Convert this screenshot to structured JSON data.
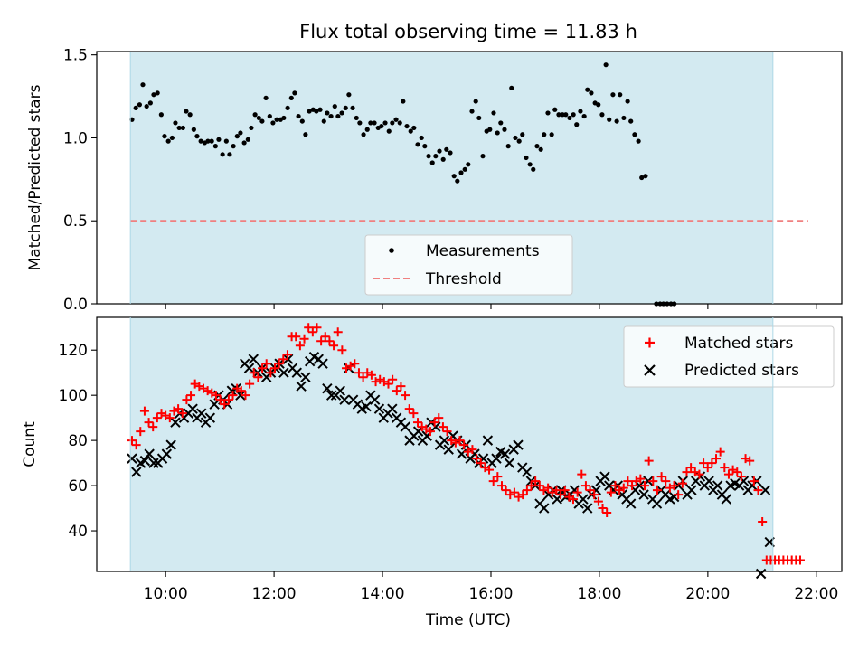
{
  "chart_data": [
    {
      "type": "scatter",
      "title": "Flux total observing time = 11.83 h",
      "xlabel": "",
      "ylabel": "Matched/Predicted stars",
      "xlim": [
        8.73,
        22.47
      ],
      "ylim": [
        0.0,
        1.52
      ],
      "yticks": [
        0.0,
        0.5,
        1.0,
        1.5
      ],
      "ytick_labels": [
        "0.0",
        "0.5",
        "1.0",
        "1.5"
      ],
      "observing_window": [
        9.35,
        21.2
      ],
      "shade_color": "#d3eaf1",
      "legend_position": "lower-center",
      "threshold": {
        "name": "Threshold",
        "value": 0.5,
        "x_range": [
          9.35,
          21.85
        ],
        "color": "#f08080"
      },
      "series": [
        {
          "name": "Measurements",
          "color": "#000000",
          "points": [
            [
              9.38,
              1.11
            ],
            [
              9.45,
              1.18
            ],
            [
              9.52,
              1.2
            ],
            [
              9.58,
              1.32
            ],
            [
              9.65,
              1.19
            ],
            [
              9.72,
              1.21
            ],
            [
              9.78,
              1.26
            ],
            [
              9.85,
              1.27
            ],
            [
              9.92,
              1.14
            ],
            [
              9.98,
              1.01
            ],
            [
              10.05,
              0.98
            ],
            [
              10.12,
              1.0
            ],
            [
              10.18,
              1.09
            ],
            [
              10.25,
              1.06
            ],
            [
              10.32,
              1.06
            ],
            [
              10.38,
              1.16
            ],
            [
              10.45,
              1.14
            ],
            [
              10.52,
              1.05
            ],
            [
              10.58,
              1.01
            ],
            [
              10.65,
              0.98
            ],
            [
              10.72,
              0.97
            ],
            [
              10.78,
              0.98
            ],
            [
              10.85,
              0.98
            ],
            [
              10.92,
              0.95
            ],
            [
              10.98,
              0.99
            ],
            [
              11.05,
              0.9
            ],
            [
              11.12,
              0.98
            ],
            [
              11.18,
              0.9
            ],
            [
              11.25,
              0.95
            ],
            [
              11.32,
              1.01
            ],
            [
              11.38,
              1.03
            ],
            [
              11.45,
              0.97
            ],
            [
              11.52,
              0.99
            ],
            [
              11.58,
              1.06
            ],
            [
              11.65,
              1.14
            ],
            [
              11.72,
              1.12
            ],
            [
              11.78,
              1.1
            ],
            [
              11.85,
              1.24
            ],
            [
              11.92,
              1.13
            ],
            [
              11.98,
              1.09
            ],
            [
              12.05,
              1.11
            ],
            [
              12.12,
              1.11
            ],
            [
              12.18,
              1.12
            ],
            [
              12.25,
              1.18
            ],
            [
              12.32,
              1.24
            ],
            [
              12.38,
              1.27
            ],
            [
              12.45,
              1.13
            ],
            [
              12.52,
              1.1
            ],
            [
              12.58,
              1.02
            ],
            [
              12.65,
              1.16
            ],
            [
              12.72,
              1.17
            ],
            [
              12.78,
              1.16
            ],
            [
              12.85,
              1.17
            ],
            [
              12.92,
              1.1
            ],
            [
              12.98,
              1.15
            ],
            [
              13.05,
              1.13
            ],
            [
              13.12,
              1.19
            ],
            [
              13.18,
              1.13
            ],
            [
              13.25,
              1.15
            ],
            [
              13.32,
              1.18
            ],
            [
              13.38,
              1.26
            ],
            [
              13.45,
              1.18
            ],
            [
              13.52,
              1.12
            ],
            [
              13.58,
              1.09
            ],
            [
              13.65,
              1.02
            ],
            [
              13.72,
              1.05
            ],
            [
              13.78,
              1.09
            ],
            [
              13.85,
              1.09
            ],
            [
              13.92,
              1.06
            ],
            [
              13.98,
              1.07
            ],
            [
              14.05,
              1.09
            ],
            [
              14.12,
              1.04
            ],
            [
              14.18,
              1.09
            ],
            [
              14.25,
              1.11
            ],
            [
              14.32,
              1.09
            ],
            [
              14.38,
              1.22
            ],
            [
              14.45,
              1.07
            ],
            [
              14.52,
              1.04
            ],
            [
              14.58,
              1.06
            ],
            [
              14.65,
              0.96
            ],
            [
              14.72,
              1.0
            ],
            [
              14.78,
              0.95
            ],
            [
              14.85,
              0.89
            ],
            [
              14.92,
              0.85
            ],
            [
              14.98,
              0.89
            ],
            [
              15.05,
              0.92
            ],
            [
              15.12,
              0.87
            ],
            [
              15.18,
              0.93
            ],
            [
              15.25,
              0.91
            ],
            [
              15.32,
              0.77
            ],
            [
              15.38,
              0.74
            ],
            [
              15.45,
              0.79
            ],
            [
              15.52,
              0.81
            ],
            [
              15.58,
              0.84
            ],
            [
              15.65,
              1.16
            ],
            [
              15.72,
              1.22
            ],
            [
              15.78,
              1.12
            ],
            [
              15.85,
              0.89
            ],
            [
              15.92,
              1.04
            ],
            [
              15.98,
              1.05
            ],
            [
              16.05,
              1.15
            ],
            [
              16.12,
              1.03
            ],
            [
              16.18,
              1.09
            ],
            [
              16.25,
              1.05
            ],
            [
              16.32,
              0.95
            ],
            [
              16.38,
              1.3
            ],
            [
              16.45,
              1.0
            ],
            [
              16.52,
              0.98
            ],
            [
              16.58,
              1.02
            ],
            [
              16.65,
              0.88
            ],
            [
              16.72,
              0.84
            ],
            [
              16.78,
              0.81
            ],
            [
              16.85,
              0.95
            ],
            [
              16.92,
              0.93
            ],
            [
              16.98,
              1.02
            ],
            [
              17.05,
              1.15
            ],
            [
              17.12,
              1.02
            ],
            [
              17.18,
              1.17
            ],
            [
              17.25,
              1.14
            ],
            [
              17.32,
              1.14
            ],
            [
              17.38,
              1.14
            ],
            [
              17.45,
              1.12
            ],
            [
              17.52,
              1.14
            ],
            [
              17.58,
              1.08
            ],
            [
              17.65,
              1.16
            ],
            [
              17.72,
              1.13
            ],
            [
              17.78,
              1.29
            ],
            [
              17.85,
              1.27
            ],
            [
              17.92,
              1.21
            ],
            [
              17.98,
              1.2
            ],
            [
              18.05,
              1.14
            ],
            [
              18.12,
              1.44
            ],
            [
              18.18,
              1.11
            ],
            [
              18.25,
              1.26
            ],
            [
              18.32,
              1.1
            ],
            [
              18.38,
              1.26
            ],
            [
              18.45,
              1.12
            ],
            [
              18.52,
              1.22
            ],
            [
              18.58,
              1.1
            ],
            [
              18.65,
              1.02
            ],
            [
              18.72,
              0.98
            ],
            [
              18.78,
              0.76
            ],
            [
              18.85,
              0.77
            ],
            [
              19.05,
              0.0
            ],
            [
              19.12,
              0.0
            ],
            [
              19.18,
              0.0
            ],
            [
              19.25,
              0.0
            ],
            [
              19.32,
              0.0
            ],
            [
              19.38,
              0.0
            ]
          ]
        }
      ]
    },
    {
      "type": "scatter",
      "title": "",
      "xlabel": "Time (UTC)",
      "ylabel": "Count",
      "xlim": [
        8.73,
        22.47
      ],
      "ylim": [
        22.0,
        134.5
      ],
      "yticks": [
        40,
        60,
        80,
        100,
        120
      ],
      "ytick_labels": [
        "40",
        "60",
        "80",
        "100",
        "120"
      ],
      "xticks": [
        10,
        12,
        14,
        16,
        18,
        20,
        22
      ],
      "xtick_labels": [
        "10:00",
        "12:00",
        "14:00",
        "16:00",
        "18:00",
        "20:00",
        "22:00"
      ],
      "observing_window": [
        9.35,
        21.2
      ],
      "shade_color": "#d3eaf1",
      "legend_position": "top-right",
      "series": [
        {
          "name": "Matched stars",
          "marker": "plus",
          "color": "#ff0000",
          "values": [
            80,
            78,
            84,
            93,
            88,
            86,
            90,
            92,
            91,
            90,
            93,
            94,
            92,
            98,
            100,
            105,
            104,
            103,
            102,
            101,
            100,
            98,
            96,
            98,
            100,
            103,
            102,
            100,
            105,
            110,
            108,
            112,
            114,
            110,
            112,
            114,
            116,
            118,
            126,
            126,
            122,
            125,
            130,
            128,
            130,
            124,
            126,
            124,
            122,
            128,
            120,
            112,
            113,
            114,
            110,
            108,
            110,
            109,
            106,
            107,
            106,
            105,
            107,
            102,
            104,
            100,
            94,
            92,
            88,
            86,
            85,
            84,
            88,
            90,
            86,
            84,
            80,
            79,
            80,
            78,
            75,
            76,
            72,
            70,
            68,
            67,
            62,
            64,
            60,
            58,
            56,
            57,
            55,
            56,
            58,
            60,
            62,
            60,
            58,
            59,
            57,
            58,
            56,
            58,
            55,
            54,
            57,
            65,
            60,
            58,
            56,
            53,
            50,
            48,
            57,
            60,
            58,
            59,
            62,
            60,
            62,
            63,
            60,
            71,
            62,
            58,
            64,
            62,
            59,
            60,
            56,
            61,
            66,
            68,
            66,
            65,
            70,
            68,
            70,
            72,
            75,
            68,
            65,
            67,
            66,
            64,
            72,
            71,
            62,
            58,
            44,
            27,
            27,
            27,
            27,
            27,
            27,
            27,
            27,
            27
          ],
          "x_start": 9.38,
          "x_step": 0.0775
        },
        {
          "name": "Predicted stars",
          "marker": "x",
          "color": "#000000",
          "values": [
            72,
            66,
            70,
            71,
            74,
            70,
            70,
            72,
            74,
            78,
            88,
            92,
            90,
            92,
            94,
            90,
            92,
            88,
            90,
            96,
            100,
            98,
            96,
            102,
            103,
            100,
            114,
            112,
            116,
            110,
            112,
            108,
            110,
            112,
            114,
            110,
            116,
            112,
            110,
            104,
            108,
            115,
            117,
            116,
            114,
            103,
            100,
            100,
            102,
            98,
            112,
            98,
            96,
            94,
            95,
            100,
            98,
            94,
            90,
            92,
            94,
            90,
            88,
            86,
            80,
            82,
            84,
            80,
            82,
            88,
            86,
            78,
            80,
            76,
            82,
            80,
            74,
            78,
            72,
            74,
            70,
            72,
            80,
            70,
            72,
            75,
            74,
            70,
            76,
            78,
            68,
            66,
            62,
            60,
            52,
            50,
            56,
            58,
            54,
            58,
            55,
            56,
            58,
            52,
            54,
            50,
            56,
            58,
            62,
            64,
            60,
            58,
            60,
            56,
            54,
            52,
            58,
            60,
            56,
            62,
            54,
            52,
            58,
            56,
            54,
            55,
            60,
            62,
            56,
            58,
            62,
            64,
            60,
            62,
            58,
            60,
            56,
            54,
            60,
            61,
            60,
            62,
            58,
            60,
            62,
            21,
            58,
            35
          ],
          "x_start": 9.38,
          "x_step": 0.08
        }
      ]
    }
  ]
}
